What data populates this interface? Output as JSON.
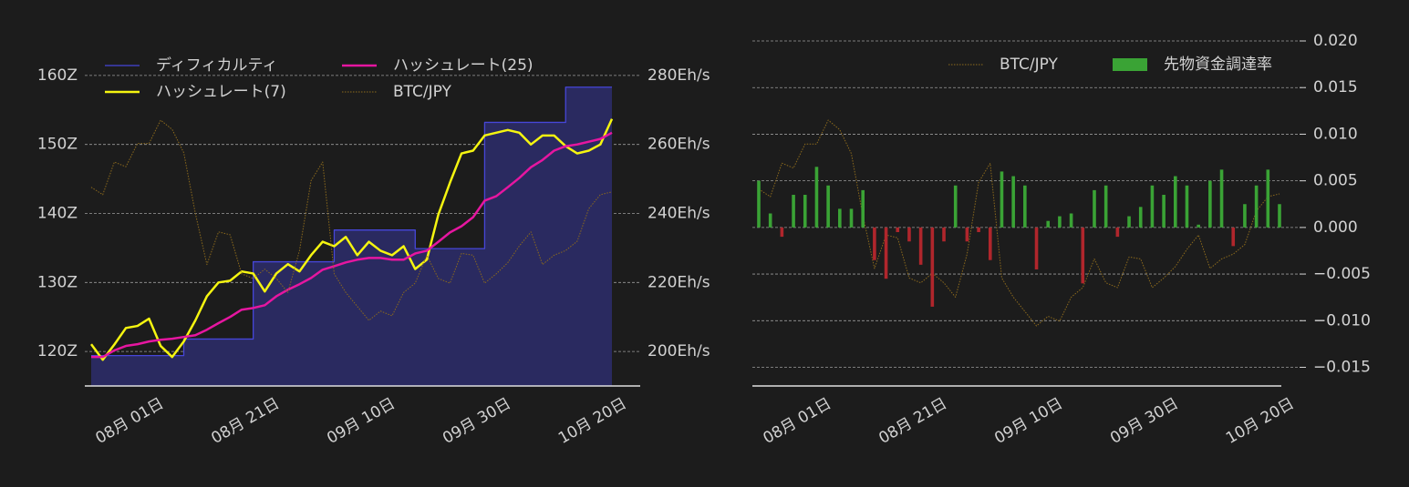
{
  "chart_data": [
    {
      "type": "line",
      "categories": [
        null,
        null,
        null,
        "08月 01日",
        null,
        null,
        null,
        null,
        null,
        null,
        null,
        null,
        null,
        "08月 21日",
        null,
        null,
        null,
        null,
        null,
        null,
        null,
        null,
        null,
        "09月 10日",
        null,
        null,
        null,
        null,
        null,
        null,
        null,
        null,
        null,
        "09月 30日",
        null,
        null,
        null,
        null,
        null,
        null,
        null,
        null,
        null,
        "10月 20日",
        null,
        null
      ],
      "ylim": [
        115,
        165
      ],
      "yticks": [
        {
          "value": 120,
          "label": "120Z"
        },
        {
          "value": 130,
          "label": "130Z"
        },
        {
          "value": 140,
          "label": "140Z"
        },
        {
          "value": 150,
          "label": "150Z"
        },
        {
          "value": 160,
          "label": "160Z"
        }
      ],
      "y2lim": [
        190,
        290
      ],
      "y2ticks": [
        {
          "value": 200,
          "label": "200Eh/s"
        },
        {
          "value": 220,
          "label": "220Eh/s"
        },
        {
          "value": 240,
          "label": "240Eh/s"
        },
        {
          "value": 260,
          "label": "260Eh/s"
        },
        {
          "value": 280,
          "label": "280Eh/s"
        }
      ],
      "grid": true,
      "legend": "upper left",
      "series": [
        {
          "name": "ディフィカルティ",
          "color": "#4646d8",
          "fill": "#2a2a60",
          "axis": "y",
          "step": true,
          "values": [
            119.4,
            119.4,
            119.4,
            119.4,
            119.4,
            119.4,
            119.4,
            119.4,
            121.8,
            121.8,
            121.8,
            121.8,
            121.8,
            121.8,
            133.0,
            133.0,
            133.0,
            133.0,
            133.0,
            133.0,
            133.0,
            137.6,
            137.6,
            137.6,
            137.6,
            137.6,
            137.6,
            137.6,
            134.9,
            134.9,
            134.9,
            134.9,
            134.9,
            134.9,
            153.2,
            153.2,
            153.2,
            153.2,
            153.2,
            153.2,
            153.2,
            158.3,
            158.3,
            158.3,
            158.3,
            158.3
          ]
        },
        {
          "name": "ハッシュレート(7)",
          "color": "#f5f510",
          "axis": "y2",
          "values": [
            202.1,
            197.6,
            202,
            206.8,
            207.4,
            209.5,
            201.6,
            198.4,
            202.9,
            209,
            216,
            220,
            220.5,
            223.2,
            222.6,
            217.4,
            222.6,
            225.3,
            223.2,
            227.9,
            231.8,
            230.5,
            233.2,
            227.9,
            231.8,
            229.2,
            227.9,
            230.5,
            223.9,
            226.6,
            239.7,
            248.9,
            257.4,
            258.2,
            262.6,
            263.4,
            264.2,
            263.4,
            260,
            262.6,
            262.6,
            259.5,
            257.4,
            258.2,
            260,
            267.4
          ]
        },
        {
          "name": "ハッシュレート(25)",
          "color": "#e616a0",
          "axis": "y2",
          "values": [
            198.4,
            198.4,
            200.3,
            201.6,
            202.1,
            202.9,
            203.4,
            203.7,
            204.2,
            204.7,
            206.3,
            208.2,
            210,
            212.1,
            212.6,
            213.4,
            216,
            217.9,
            219.5,
            221.3,
            223.7,
            224.7,
            225.8,
            226.6,
            227.1,
            227.1,
            226.6,
            226.6,
            228.4,
            229.2,
            231.8,
            234.5,
            236.3,
            238.9,
            243.7,
            245,
            247.6,
            250.3,
            253.4,
            255.5,
            258.2,
            259.5,
            260,
            260.8,
            261.6,
            263.4
          ]
        },
        {
          "name": "BTC/JPY",
          "color": "#8c6a1c",
          "dashed": true,
          "values": [
            9230000,
            9150000,
            9500000,
            9450000,
            9700000,
            9700000,
            9950000,
            9850000,
            9600000,
            8950000,
            8400000,
            8750000,
            8720000,
            8300000,
            8250000,
            8350000,
            8250000,
            8100000,
            8550000,
            9300000,
            9500000,
            8300000,
            8100000,
            7950000,
            7800000,
            7900000,
            7850000,
            8100000,
            8200000,
            8500000,
            8250000,
            8200000,
            8520000,
            8500000,
            8200000,
            8300000,
            8420000,
            8600000,
            8750000,
            8400000,
            8500000,
            8550000,
            8650000,
            9000000,
            9150000,
            9180000
          ]
        }
      ]
    },
    {
      "type": "bar",
      "categories": [
        null,
        null,
        null,
        "08月 01日",
        null,
        null,
        null,
        null,
        null,
        null,
        null,
        null,
        null,
        "08月 21日",
        null,
        null,
        null,
        null,
        null,
        null,
        null,
        null,
        null,
        "09月 10日",
        null,
        null,
        null,
        null,
        null,
        null,
        null,
        null,
        null,
        "09月 30日",
        null,
        null,
        null,
        null,
        null,
        null,
        null,
        null,
        null,
        "10月 20日",
        null,
        null
      ],
      "ylim": [
        -0.017,
        0.02
      ],
      "yticks": [
        {
          "value": -0.015,
          "label": "−0.015"
        },
        {
          "value": -0.01,
          "label": "−0.010"
        },
        {
          "value": -0.005,
          "label": "−0.005"
        },
        {
          "value": 0,
          "label": "0.000"
        },
        {
          "value": 0.005,
          "label": "0.005"
        },
        {
          "value": 0.01,
          "label": "0.010"
        },
        {
          "value": 0.015,
          "label": "0.015"
        },
        {
          "value": 0.02,
          "label": "0.020"
        }
      ],
      "grid": true,
      "legend": "upper right",
      "series": [
        {
          "name": "BTC/JPY",
          "color": "#8c6a1c",
          "dashed": true,
          "type": "line",
          "values": [
            9230000,
            9150000,
            9500000,
            9450000,
            9700000,
            9700000,
            9950000,
            9850000,
            9600000,
            8950000,
            8400000,
            8750000,
            8720000,
            8300000,
            8250000,
            8350000,
            8250000,
            8100000,
            8550000,
            9300000,
            9500000,
            8300000,
            8100000,
            7950000,
            7800000,
            7900000,
            7850000,
            8100000,
            8200000,
            8500000,
            8250000,
            8200000,
            8520000,
            8500000,
            8200000,
            8300000,
            8420000,
            8600000,
            8750000,
            8400000,
            8500000,
            8550000,
            8650000,
            9000000,
            9150000,
            9180000
          ]
        },
        {
          "name": "先物資金調達率",
          "color": "#3aa335",
          "negative_color": "#b0262c",
          "type": "bar",
          "values": [
            0.005,
            0.0015,
            -0.001,
            0.0035,
            0.0035,
            0.0065,
            0.0045,
            0.002,
            0.002,
            0.004,
            -0.0035,
            -0.0055,
            -0.0005,
            -0.0015,
            -0.004,
            -0.0085,
            -0.0015,
            0.0045,
            -0.0015,
            -0.0005,
            -0.0035,
            0.006,
            0.0055,
            0.0045,
            -0.0045,
            0.0007,
            0.0012,
            0.0015,
            -0.006,
            0.004,
            0.0045,
            -0.001,
            0.0012,
            0.0022,
            0.0045,
            0.0035,
            0.0055,
            0.0045,
            0.0003,
            0.005,
            0.0062,
            -0.002,
            0.0025,
            0.0045,
            0.0062,
            0.0025
          ]
        }
      ]
    }
  ]
}
